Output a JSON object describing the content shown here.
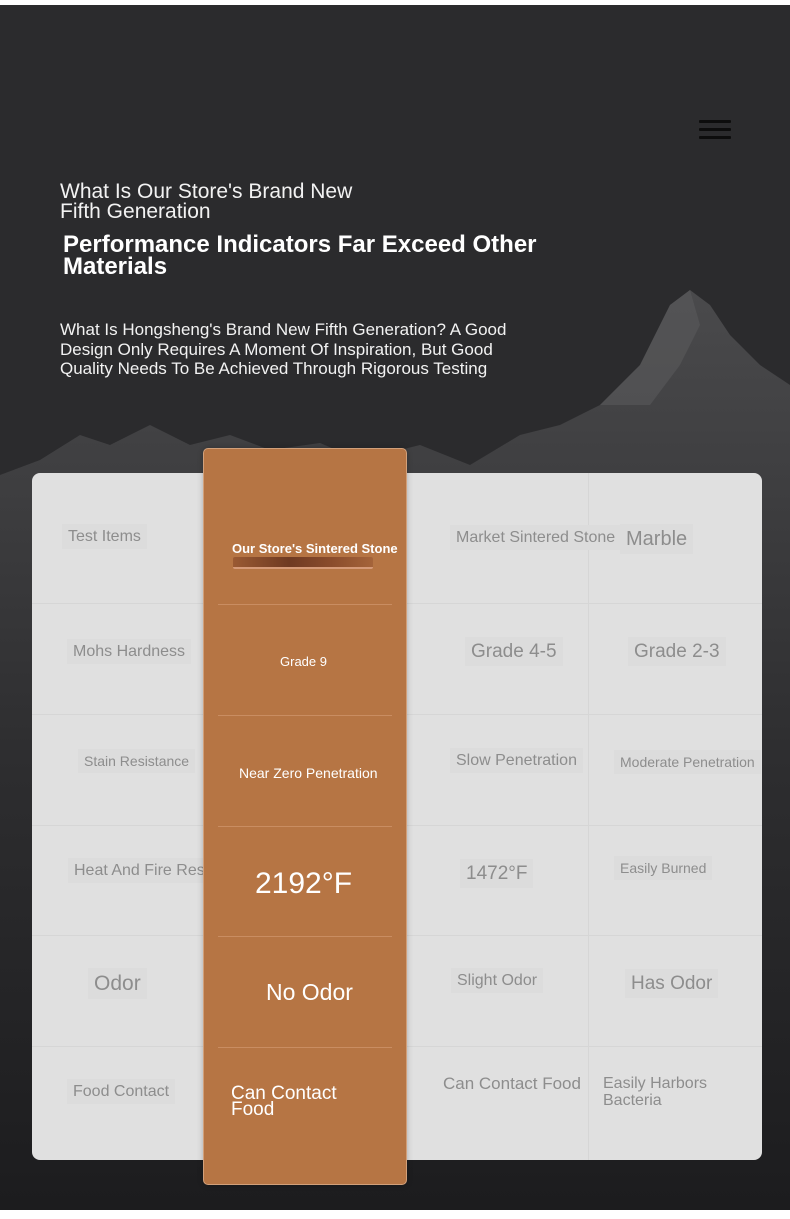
{
  "header": {
    "menu_icon": "hamburger-menu-icon",
    "title_line1": "What Is Our Store's Brand New",
    "title_line2": "Fifth Generation",
    "headline": "Performance Indicators Far Exceed Other Materials",
    "description": "What Is Hongsheng's Brand New Fifth Generation? A Good Design Only Requires A Moment Of Inspiration, But Good Quality Needs To Be Achieved Through Rigorous Testing"
  },
  "comparison_table": {
    "columns": [
      "Test Items",
      "Our Store's Sintered Stone",
      "Market Sintered Stone",
      "Marble"
    ],
    "rows": [
      [
        "Mohs Hardness",
        "Grade 9",
        "Grade 4-5",
        "Grade 2-3"
      ],
      [
        "Stain Resistance",
        "Near Zero Penetration",
        "Slow Penetration",
        "Moderate Penetration"
      ],
      [
        "Heat And Fire Resistance",
        "2192°F",
        "1472°F",
        "Easily Burned"
      ],
      [
        "Odor",
        "No Odor",
        "Slight Odor",
        "Has Odor"
      ],
      [
        "Food Contact",
        "Can Contact Food",
        "Can Contact Food",
        "Easily Harbors Bacteria"
      ]
    ]
  },
  "colors": {
    "background": "#2b2b2d",
    "table": "#e0e0e0",
    "highlight": "#b67544",
    "muted_text": "#8d8d8d"
  }
}
